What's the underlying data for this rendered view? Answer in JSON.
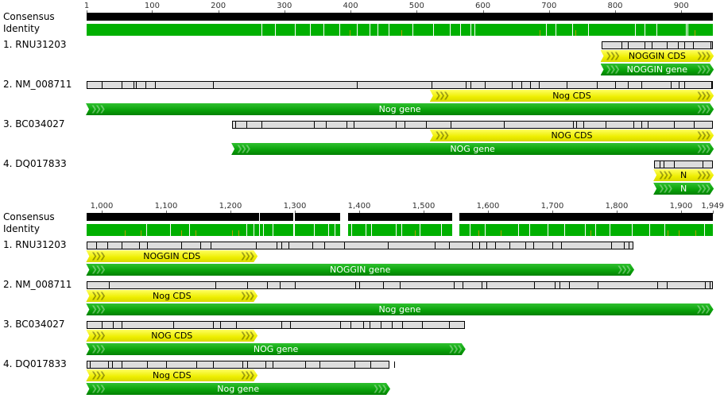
{
  "colors": {
    "identity": "#00b000",
    "consensus": "#000000",
    "cds": "#eeee00",
    "gene": "#08a008",
    "sequence": "#dddddd"
  },
  "labels": {
    "consensus": "Consensus",
    "identity": "Identity"
  },
  "panels": [
    {
      "ticks": [
        "1",
        "100",
        "200",
        "300",
        "400",
        "500",
        "600",
        "700",
        "800",
        "900"
      ],
      "consensus_segments": [
        [
          1,
          948
        ]
      ],
      "rows": [
        {
          "label": "1. RNU31203",
          "seq": [
            779,
            948
          ],
          "cds": {
            "label": "NOGGIN CDS",
            "range": [
              779,
              948
            ]
          },
          "gene": {
            "label": "NOGGIN gene",
            "range": [
              779,
              948
            ]
          }
        },
        {
          "label": "2. NM_008711",
          "seq": [
            1,
            948
          ],
          "cds": {
            "label": "Nog CDS",
            "range": [
              521,
              948
            ]
          },
          "gene": {
            "label": "Nog gene",
            "range": [
              1,
              948
            ]
          }
        },
        {
          "label": "3. BC034027",
          "seq": [
            221,
            948
          ],
          "cds": {
            "label": "NOG CDS",
            "range": [
              521,
              948
            ]
          },
          "gene": {
            "label": "NOG gene",
            "range": [
              221,
              948
            ]
          }
        },
        {
          "label": "4. DQ017833",
          "seq": [
            859,
            948
          ],
          "cds": {
            "label": "N",
            "range": [
              859,
              948
            ]
          },
          "gene": {
            "label": "N",
            "range": [
              859,
              948
            ]
          }
        }
      ]
    },
    {
      "ticks": [
        "1,000",
        "1,100",
        "1,200",
        "1,300",
        "1,400",
        "1,500",
        "1,600",
        "1,700",
        "1,800",
        "1,900",
        "1,949"
      ],
      "consensus_segments": [
        [
          977,
          1244
        ],
        [
          1246,
          1298
        ],
        [
          1300,
          1370
        ],
        [
          1383,
          1545
        ],
        [
          1555,
          1949
        ]
      ],
      "rows": [
        {
          "label": "1. RNU31203",
          "seq": [
            977,
            1826
          ],
          "cds": {
            "label": "NOGGIN CDS",
            "range": [
              977,
              1241
            ]
          },
          "gene": {
            "label": "NOGGIN gene",
            "range": [
              977,
              1826
            ]
          }
        },
        {
          "label": "2. NM_008711",
          "seq": [
            977,
            1949
          ],
          "cds": {
            "label": "Nog CDS",
            "range": [
              977,
              1241
            ]
          },
          "gene": {
            "label": "Nog gene",
            "range": [
              977,
              1949
            ]
          }
        },
        {
          "label": "3. BC034027",
          "seq": [
            977,
            1564
          ],
          "cds": {
            "label": "NOG CDS",
            "range": [
              977,
              1241
            ]
          },
          "gene": {
            "label": "NOG gene",
            "range": [
              977,
              1564
            ]
          }
        },
        {
          "label": "4. DQ017833",
          "seq": [
            977,
            1447
          ],
          "cds": {
            "label": "Nog CDS",
            "range": [
              977,
              1241
            ]
          },
          "gene": {
            "label": "Nog gene",
            "range": [
              977,
              1447
            ]
          }
        }
      ]
    }
  ]
}
